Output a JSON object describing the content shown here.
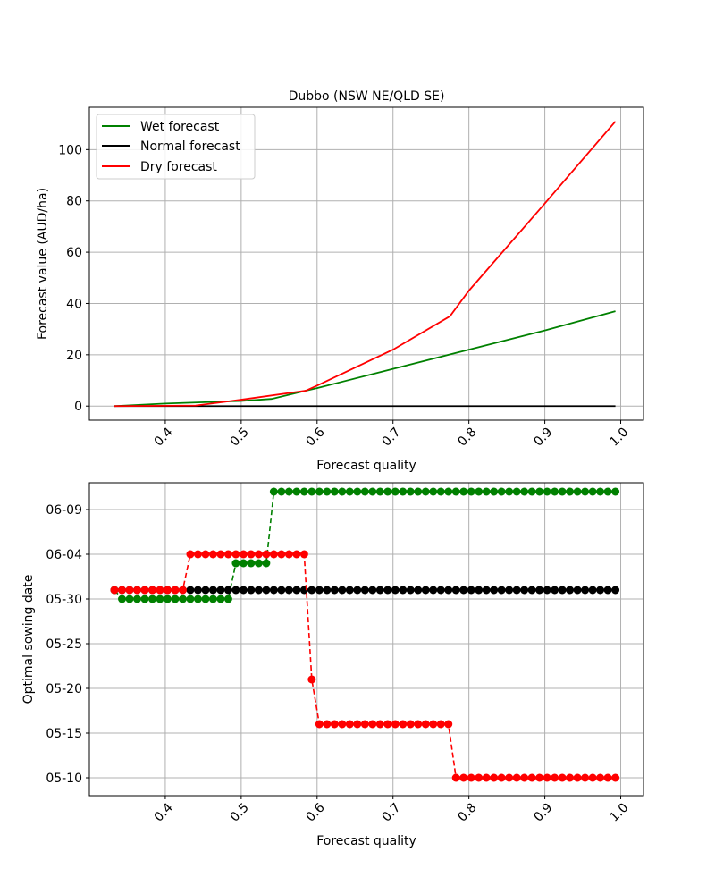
{
  "chart_data": [
    {
      "type": "line",
      "title": "Dubbo (NSW NE/QLD SE)",
      "xlabel": "Forecast quality",
      "ylabel": "Forecast value (AUD/ha)",
      "xlim": [
        0.3,
        1.03
      ],
      "ylim": [
        -5.5,
        116.5
      ],
      "xticks": [
        "0.4",
        "0.5",
        "0.6",
        "0.7",
        "0.8",
        "0.9",
        "1.0"
      ],
      "xtick_values": [
        0.4,
        0.5,
        0.6,
        0.7,
        0.8,
        0.9,
        1.0
      ],
      "yticks": [
        "0",
        "20",
        "40",
        "60",
        "80",
        "100"
      ],
      "ytick_values": [
        0,
        20,
        40,
        60,
        80,
        100
      ],
      "grid": true,
      "legend_position": "upper-left",
      "series": [
        {
          "name": "Wet forecast",
          "color": "#008000",
          "x": [
            0.333,
            0.4,
            0.5,
            0.54,
            0.585,
            0.6,
            0.7,
            0.8,
            0.9,
            0.993
          ],
          "y": [
            0,
            1.0,
            2.0,
            2.8,
            6.0,
            7.0,
            14.5,
            22.0,
            29.5,
            37.0
          ]
        },
        {
          "name": "Normal forecast",
          "color": "#000000",
          "x": [
            0.333,
            0.993
          ],
          "y": [
            0,
            0
          ]
        },
        {
          "name": "Dry forecast",
          "color": "#ff0000",
          "x": [
            0.333,
            0.44,
            0.5,
            0.585,
            0.6,
            0.7,
            0.775,
            0.8,
            0.9,
            0.993
          ],
          "y": [
            0,
            0.2,
            2.5,
            6.0,
            8.0,
            22.0,
            35.0,
            45.0,
            79.0,
            111.0
          ]
        }
      ]
    },
    {
      "type": "line",
      "xlabel": "Forecast quality",
      "ylabel": "Optimal sowing date",
      "xlim": [
        0.3,
        1.03
      ],
      "ylim": [
        "05-08",
        "06-12"
      ],
      "xticks": [
        "0.4",
        "0.5",
        "0.6",
        "0.7",
        "0.8",
        "0.9",
        "1.0"
      ],
      "xtick_values": [
        0.4,
        0.5,
        0.6,
        0.7,
        0.8,
        0.9,
        1.0
      ],
      "yticks": [
        "05-10",
        "05-15",
        "05-20",
        "05-25",
        "05-30",
        "06-04",
        "06-09"
      ],
      "grid": true,
      "markers": "filled circle",
      "line_style": "dashed",
      "series": [
        {
          "name": "Wet forecast",
          "color": "#008000",
          "x_start": 0.333,
          "x_step": 0.01,
          "count": 67,
          "dates": [
            "05-31",
            "05-30",
            "05-30",
            "05-30",
            "05-30",
            "05-30",
            "05-30",
            "05-30",
            "05-30",
            "05-30",
            "05-30",
            "05-30",
            "05-30",
            "05-30",
            "05-30",
            "05-30",
            "06-03",
            "06-03",
            "06-03",
            "06-03",
            "06-03",
            "06-11",
            "06-11",
            "06-11",
            "06-11",
            "06-11",
            "06-11",
            "06-11",
            "06-11",
            "06-11",
            "06-11",
            "06-11",
            "06-11",
            "06-11",
            "06-11",
            "06-11",
            "06-11",
            "06-11",
            "06-11",
            "06-11",
            "06-11",
            "06-11",
            "06-11",
            "06-11",
            "06-11",
            "06-11",
            "06-11",
            "06-11",
            "06-11",
            "06-11",
            "06-11",
            "06-11",
            "06-11",
            "06-11",
            "06-11",
            "06-11",
            "06-11",
            "06-11",
            "06-11",
            "06-11",
            "06-11",
            "06-11",
            "06-11",
            "06-11",
            "06-11",
            "06-11",
            "06-11"
          ]
        },
        {
          "name": "Normal forecast",
          "color": "#000000",
          "x_start": 0.333,
          "x_step": 0.01,
          "count": 67,
          "dates": [
            "05-31",
            "05-31",
            "05-31",
            "05-31",
            "05-31",
            "05-31",
            "05-31",
            "05-31",
            "05-31",
            "05-31",
            "05-31",
            "05-31",
            "05-31",
            "05-31",
            "05-31",
            "05-31",
            "05-31",
            "05-31",
            "05-31",
            "05-31",
            "05-31",
            "05-31",
            "05-31",
            "05-31",
            "05-31",
            "05-31",
            "05-31",
            "05-31",
            "05-31",
            "05-31",
            "05-31",
            "05-31",
            "05-31",
            "05-31",
            "05-31",
            "05-31",
            "05-31",
            "05-31",
            "05-31",
            "05-31",
            "05-31",
            "05-31",
            "05-31",
            "05-31",
            "05-31",
            "05-31",
            "05-31",
            "05-31",
            "05-31",
            "05-31",
            "05-31",
            "05-31",
            "05-31",
            "05-31",
            "05-31",
            "05-31",
            "05-31",
            "05-31",
            "05-31",
            "05-31",
            "05-31",
            "05-31",
            "05-31",
            "05-31",
            "05-31",
            "05-31",
            "05-31"
          ]
        },
        {
          "name": "Dry forecast",
          "color": "#ff0000",
          "x_start": 0.333,
          "x_step": 0.01,
          "count": 67,
          "dates": [
            "05-31",
            "05-31",
            "05-31",
            "05-31",
            "05-31",
            "05-31",
            "05-31",
            "05-31",
            "05-31",
            "05-31",
            "06-04",
            "06-04",
            "06-04",
            "06-04",
            "06-04",
            "06-04",
            "06-04",
            "06-04",
            "06-04",
            "06-04",
            "06-04",
            "06-04",
            "06-04",
            "06-04",
            "06-04",
            "06-04",
            "05-21",
            "05-16",
            "05-16",
            "05-16",
            "05-16",
            "05-16",
            "05-16",
            "05-16",
            "05-16",
            "05-16",
            "05-16",
            "05-16",
            "05-16",
            "05-16",
            "05-16",
            "05-16",
            "05-16",
            "05-16",
            "05-16",
            "05-10",
            "05-10",
            "05-10",
            "05-10",
            "05-10",
            "05-10",
            "05-10",
            "05-10",
            "05-10",
            "05-10",
            "05-10",
            "05-10",
            "05-10",
            "05-10",
            "05-10",
            "05-10",
            "05-10",
            "05-10",
            "05-10",
            "05-10",
            "05-10",
            "05-10"
          ]
        }
      ]
    }
  ]
}
